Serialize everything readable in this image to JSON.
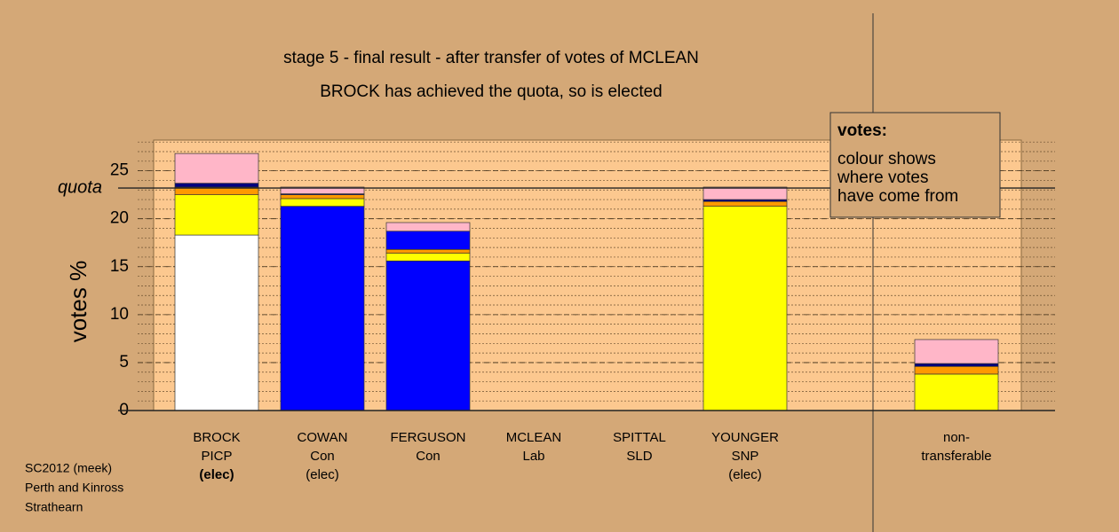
{
  "chart_data": {
    "type": "bar",
    "stacked": true,
    "title": "stage 5 - final result - after transfer of votes of MCLEAN",
    "subtitle": "BROCK has achieved the quota, so is elected",
    "y_label": "votes %",
    "categories": [
      [
        "BROCK",
        "PICP",
        "(elec)"
      ],
      [
        "COWAN",
        "Con",
        "(elec)"
      ],
      [
        "FERGUSON",
        "Con"
      ],
      [
        "MCLEAN",
        "Lab"
      ],
      [
        "SPITTAL",
        "SLD"
      ],
      [
        "YOUNGER",
        "SNP",
        "(elec)"
      ],
      null,
      [
        "non-",
        "transferable"
      ]
    ],
    "highlight_category": 0,
    "series": [
      {
        "color": "#ffffff",
        "values": [
          18.3,
          0,
          0,
          0,
          0,
          0,
          null,
          0
        ]
      },
      {
        "color": "#0000ff",
        "values": [
          0,
          21.3,
          15.6,
          0,
          0,
          0,
          null,
          0
        ]
      },
      {
        "color": "#ffff00",
        "values": [
          4.2,
          0.8,
          0.8,
          0,
          0,
          21.3,
          null,
          3.8
        ]
      },
      {
        "color": "#ff9900",
        "values": [
          0.8,
          0.4,
          0.4,
          0,
          0,
          0.5,
          null,
          0.8
        ]
      },
      {
        "color": "#0000ff",
        "values": [
          0,
          0,
          1.9,
          0,
          0,
          0,
          null,
          0
        ]
      },
      {
        "color": "#000080",
        "values": [
          0.4,
          0.1,
          0,
          0,
          0,
          0.2,
          null,
          0.3
        ]
      },
      {
        "color": "#ffb6c8",
        "values": [
          3.1,
          0.7,
          0.9,
          0,
          0,
          1.3,
          null,
          2.5
        ]
      }
    ],
    "quota": {
      "value": 23.2,
      "label": "quota"
    },
    "ylim": [
      0,
      28.2
    ],
    "yticks": [
      0,
      5,
      10,
      15,
      20,
      25
    ],
    "minor_tick_step": 1,
    "grid": true,
    "note": {
      "title": "votes:",
      "lines": [
        "colour shows",
        "where votes",
        "have come from"
      ]
    },
    "footer": [
      "SC2012 (meek)",
      "Perth and Kinross",
      "Strathearn"
    ]
  }
}
